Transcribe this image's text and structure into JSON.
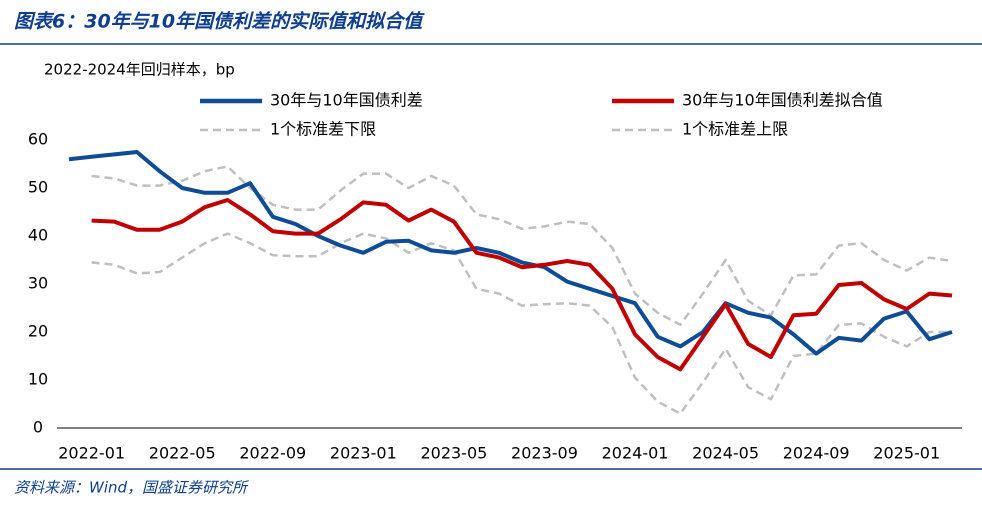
{
  "chart_data": {
    "type": "line",
    "title": "图表6：30年与10年国债利差的实际值和拟合值",
    "subtitle": "2022-2024年回归样本，bp",
    "categories": [
      null,
      "2022-01",
      null,
      null,
      null,
      "2022-05",
      null,
      null,
      null,
      "2022-09",
      null,
      null,
      null,
      "2023-01",
      null,
      null,
      null,
      "2023-05",
      null,
      null,
      null,
      "2023-09",
      null,
      null,
      null,
      "2024-01",
      null,
      null,
      null,
      "2024-05",
      null,
      null,
      null,
      "2024-09",
      null,
      null,
      null,
      "2025-01",
      null,
      null
    ],
    "series": [
      {
        "name": "30年与10年国债利差",
        "color": "#0f4c96",
        "line_style": "solid",
        "values": [
          56,
          56.5,
          57,
          57.5,
          53.5,
          50,
          49,
          49,
          51,
          44,
          42.5,
          40,
          38,
          36.5,
          38.8,
          39,
          37,
          36.5,
          37.5,
          36.5,
          34.5,
          33.5,
          30.5,
          29,
          27.5,
          26,
          19,
          17,
          20,
          26,
          24,
          23,
          19.5,
          15.5,
          18.8,
          18.2,
          22.8,
          24.3,
          18.5,
          20
        ]
      },
      {
        "name": "30年与10年国债利差拟合值",
        "color": "#c00000",
        "line_style": "solid",
        "values": [
          null,
          43.2,
          43,
          41.3,
          41.3,
          43,
          46,
          47.5,
          44.5,
          41,
          40.5,
          40.5,
          43.5,
          47,
          46.5,
          43.2,
          45.5,
          43,
          36.5,
          35.5,
          33.5,
          34,
          34.8,
          34,
          29,
          19.5,
          14.8,
          12.2,
          19,
          25.8,
          17.5,
          14.8,
          23.5,
          23.8,
          29.8,
          30.2,
          26.8,
          24.8,
          28,
          27.6
        ]
      },
      {
        "name": "1个标准差下限",
        "color": "#bfbfbf",
        "line_style": "dashed",
        "values": [
          null,
          34.5,
          34,
          32.2,
          32.5,
          35.5,
          38.5,
          40.5,
          38.5,
          36,
          35.8,
          35.8,
          38.5,
          40.5,
          39.5,
          36.5,
          38.5,
          37,
          29,
          28,
          25.5,
          25.8,
          26,
          25.5,
          21,
          10.5,
          5.5,
          3,
          9.5,
          16.5,
          8.5,
          6,
          15,
          15.5,
          21.5,
          21.8,
          19,
          17,
          20,
          20
        ]
      },
      {
        "name": "1个标准差上限",
        "color": "#bfbfbf",
        "line_style": "dashed",
        "values": [
          null,
          52.5,
          52,
          50.5,
          50.5,
          51.5,
          53.5,
          54.5,
          50,
          46.5,
          45.5,
          45.5,
          49.5,
          53,
          53,
          50,
          52.5,
          50.5,
          44.5,
          43.5,
          41.5,
          42,
          43,
          42.5,
          37.5,
          28,
          24,
          21.5,
          28,
          35,
          26.5,
          23.5,
          31.8,
          32,
          38,
          38.5,
          35,
          32.8,
          35.5,
          34.8
        ]
      }
    ],
    "ylim": [
      0,
      60
    ],
    "yticks": [
      0,
      10,
      20,
      30,
      40,
      50,
      60
    ]
  },
  "source": "资料来源：Wind，国盛证券研究所"
}
